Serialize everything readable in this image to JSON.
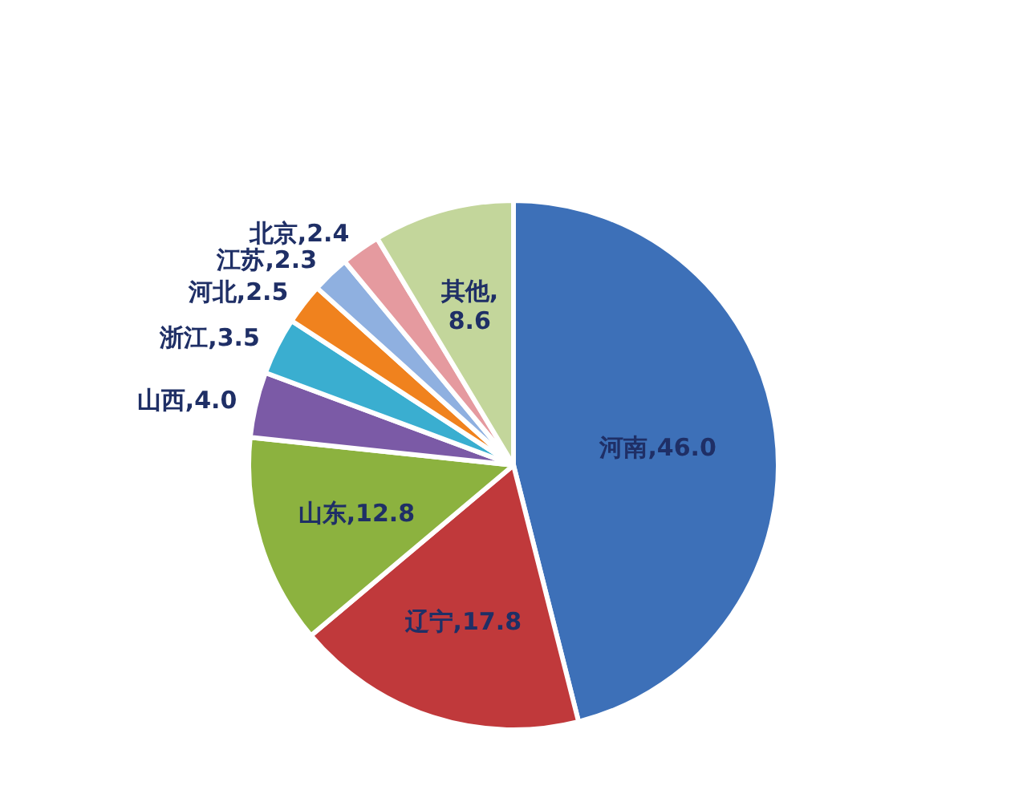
{
  "chart_data": {
    "type": "pie",
    "categories": [
      "河南",
      "辽宁",
      "山东",
      "山西",
      "浙江",
      "河北",
      "江苏",
      "北京",
      "其他"
    ],
    "values": [
      46.0,
      17.8,
      12.8,
      4.0,
      3.5,
      2.5,
      2.3,
      2.4,
      8.6
    ],
    "value_labels": [
      ",46.0",
      ",17.8",
      ",12.8",
      ",4.0",
      ",3.5",
      ",2.5",
      ",2.3",
      ",2.4",
      ",8.6"
    ],
    "colors": [
      "#3d70b8",
      "#c0393b",
      "#8cb23f",
      "#7b5aa6",
      "#3aaed0",
      "#f0821e",
      "#8fb0e0",
      "#e59a9f",
      "#c3d69b"
    ]
  }
}
